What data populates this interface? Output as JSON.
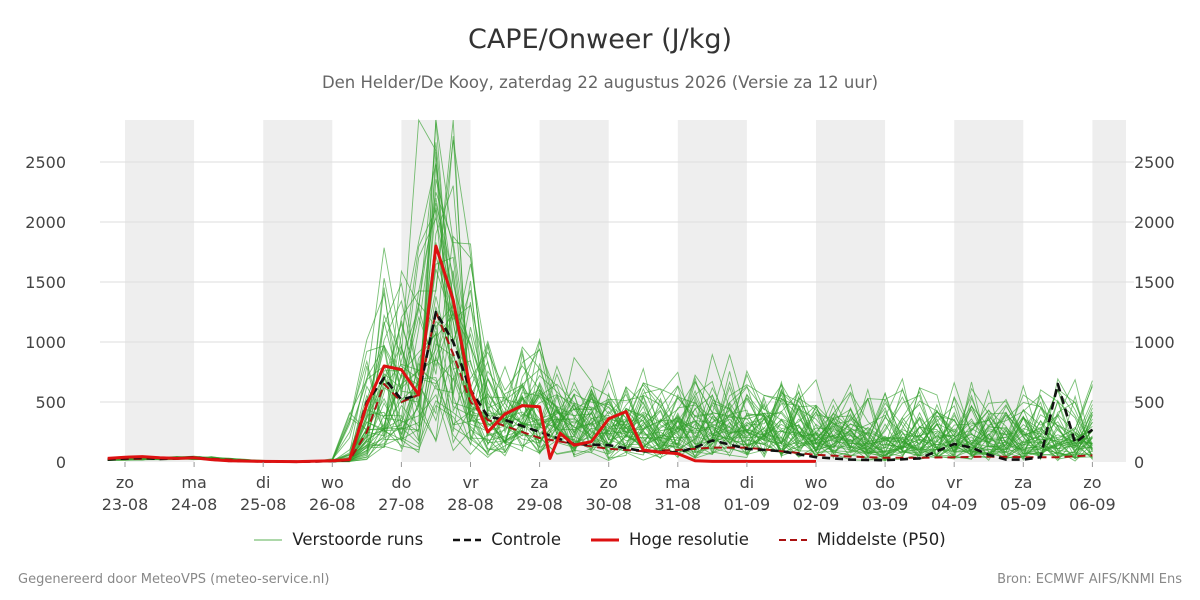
{
  "chart_data": {
    "type": "line",
    "title": "CAPE/Onweer (J/kg)",
    "subtitle": "Den Helder/De Kooy, zaterdag 22 augustus 2026 (Versie za 12 uur)",
    "ylim": [
      0,
      2850
    ],
    "yticks": [
      0,
      500,
      1000,
      1500,
      2000,
      2500
    ],
    "xlim": [
      -0.25,
      14.0
    ],
    "grid": true,
    "legend_position": "bottom",
    "x_ticks": [
      {
        "day": "zo",
        "date": "23-08"
      },
      {
        "day": "ma",
        "date": "24-08"
      },
      {
        "day": "di",
        "date": "25-08"
      },
      {
        "day": "wo",
        "date": "26-08"
      },
      {
        "day": "do",
        "date": "27-08"
      },
      {
        "day": "vr",
        "date": "28-08"
      },
      {
        "day": "za",
        "date": "29-08"
      },
      {
        "day": "zo",
        "date": "30-08"
      },
      {
        "day": "ma",
        "date": "31-08"
      },
      {
        "day": "di",
        "date": "01-09"
      },
      {
        "day": "wo",
        "date": "02-09"
      },
      {
        "day": "do",
        "date": "03-09"
      },
      {
        "day": "vr",
        "date": "04-09"
      },
      {
        "day": "za",
        "date": "05-09"
      },
      {
        "day": "zo",
        "date": "06-09"
      }
    ],
    "weekend_bands": [
      [
        0,
        1
      ],
      [
        2,
        3
      ],
      [
        4,
        5
      ],
      [
        6,
        7
      ],
      [
        8,
        9
      ],
      [
        10,
        11
      ],
      [
        12,
        13
      ],
      [
        14,
        14.5
      ]
    ],
    "series": [
      {
        "name": "Controle",
        "color": "#111111",
        "style": "dashed",
        "x": [
          -0.25,
          0,
          0.25,
          0.5,
          0.75,
          1,
          1.25,
          1.5,
          2,
          2.5,
          3,
          3.25,
          3.5,
          3.75,
          4,
          4.25,
          4.5,
          4.75,
          5,
          5.25,
          5.5,
          5.75,
          6,
          6.25,
          6.5,
          7,
          7.5,
          8,
          8.25,
          8.5,
          9,
          9.5,
          10,
          10.5,
          11,
          11.5,
          12,
          12.25,
          12.5,
          12.75,
          13,
          13.25,
          13.5,
          13.75,
          14
        ],
        "values": [
          20,
          30,
          35,
          25,
          30,
          40,
          20,
          10,
          5,
          2,
          8,
          15,
          500,
          700,
          520,
          560,
          1250,
          1000,
          600,
          380,
          350,
          300,
          250,
          200,
          150,
          140,
          90,
          80,
          120,
          180,
          110,
          90,
          40,
          20,
          15,
          30,
          150,
          120,
          60,
          20,
          20,
          40,
          650,
          160,
          270
        ]
      },
      {
        "name": "Hoge resolutie",
        "color": "#dd1111",
        "style": "solid",
        "x": [
          -0.25,
          0,
          0.25,
          0.5,
          0.75,
          1,
          1.25,
          1.5,
          2,
          2.5,
          3,
          3.25,
          3.5,
          3.75,
          4,
          4.25,
          4.5,
          4.75,
          5,
          5.25,
          5.5,
          5.75,
          6,
          6.15,
          6.3,
          6.5,
          6.75,
          7,
          7.25,
          7.5,
          7.75,
          8,
          8.25,
          8.5,
          8.75,
          9,
          9.5,
          10
        ],
        "values": [
          30,
          40,
          45,
          35,
          30,
          35,
          20,
          10,
          5,
          3,
          10,
          20,
          480,
          800,
          770,
          560,
          1800,
          1350,
          600,
          250,
          400,
          470,
          460,
          30,
          240,
          140,
          170,
          360,
          420,
          100,
          80,
          70,
          10,
          5,
          5,
          5,
          5,
          5
        ]
      },
      {
        "name": "Middelste (P50)",
        "color": "#aa1111",
        "style": "dashed",
        "x": [
          -0.25,
          0,
          0.5,
          1,
          1.5,
          2,
          2.5,
          3,
          3.25,
          3.5,
          3.75,
          4,
          4.25,
          4.5,
          4.75,
          5,
          5.25,
          5.5,
          6,
          6.5,
          7,
          7.5,
          8,
          8.5,
          9,
          9.5,
          10,
          10.5,
          11,
          11.5,
          12,
          12.5,
          13,
          13.5,
          14
        ],
        "values": [
          20,
          25,
          30,
          35,
          20,
          5,
          2,
          5,
          15,
          250,
          650,
          500,
          560,
          1250,
          900,
          500,
          350,
          300,
          200,
          150,
          110,
          90,
          100,
          120,
          120,
          90,
          60,
          45,
          35,
          35,
          40,
          45,
          40,
          40,
          55
        ]
      }
    ]
  },
  "legend": {
    "ensemble": "Verstoorde runs",
    "control": "Controle",
    "hires": "Hoge resolutie",
    "median": "Middelste (P50)"
  },
  "footer": {
    "left": "Gegenereerd door MeteoVPS (meteo-service.nl)",
    "right": "Bron: ECMWF AIFS/KNMI Ens"
  },
  "colors": {
    "ensemble": "#33a02c",
    "control": "#111111",
    "hires": "#dd1111",
    "median": "#aa1111",
    "band": "#eeeeee",
    "grid": "#dddddd"
  }
}
